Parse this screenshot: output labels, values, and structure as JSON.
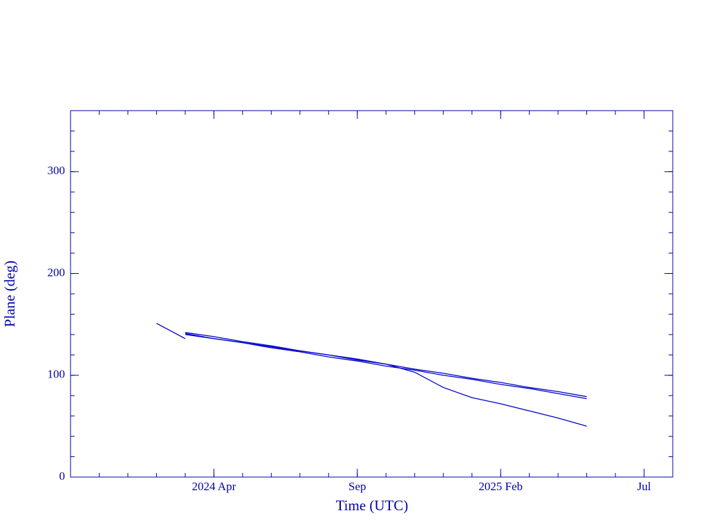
{
  "chart_data": {
    "type": "line",
    "xlabel": "Time (UTC)",
    "ylabel": "Plane (deg)",
    "x": [
      "2024-02",
      "2024-03",
      "2024-04",
      "2024-05",
      "2024-06",
      "2024-07",
      "2024-08",
      "2024-09",
      "2024-10",
      "2024-11",
      "2024-12",
      "2025-01",
      "2025-02",
      "2025-03",
      "2025-04",
      "2025-05"
    ],
    "series": [
      {
        "color": "#0000cc",
        "values": [
          151,
          136,
          null,
          null,
          null,
          null,
          null,
          null,
          null,
          null,
          null,
          null,
          null,
          null,
          null,
          null
        ]
      },
      {
        "color": "#0000cc",
        "values": [
          null,
          142,
          138,
          133,
          129,
          124,
          120,
          115,
          111,
          106,
          102,
          97,
          93,
          88,
          84,
          79
        ]
      },
      {
        "color": "#0000cc",
        "values": [
          null,
          141,
          136,
          132,
          127,
          123,
          118,
          114,
          109,
          105,
          100,
          96,
          91,
          87,
          82,
          77
        ]
      },
      {
        "color": "#0000cc",
        "values": [
          null,
          140,
          136,
          132,
          128,
          124,
          120,
          116,
          111,
          103,
          88,
          78,
          72,
          65,
          58,
          50
        ]
      }
    ],
    "xlim": [
      "2023-11",
      "2025-08"
    ],
    "xticks": [
      {
        "value": "2024-04",
        "label": "2024 Apr"
      },
      {
        "value": "2024-09",
        "label": "Sep"
      },
      {
        "value": "2025-02",
        "label": "2025 Feb"
      },
      {
        "value": "2025-07",
        "label": "Jul"
      }
    ],
    "ylim": [
      0,
      360
    ],
    "yticks": [
      0,
      100,
      200,
      300
    ],
    "axis_color": "#0000aa"
  }
}
